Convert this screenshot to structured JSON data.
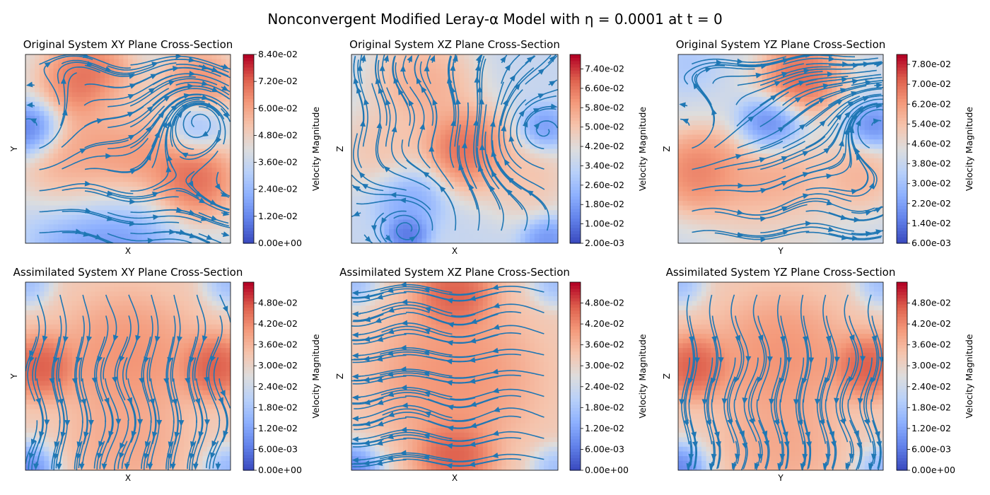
{
  "figure": {
    "title": "Nonconvergent Modified Leray-α Model with η = 0.0001 at t = 0"
  },
  "chart_data": [
    {
      "type": "heatmap",
      "title": "Original System XY Plane Cross-Section",
      "xlabel": "X",
      "ylabel": "Y",
      "colorbar": {
        "label": "Velocity Magnitude",
        "range": [
          0.0,
          0.084
        ],
        "ticks": [
          "0.00e+00",
          "1.20e-02",
          "2.40e-02",
          "3.60e-02",
          "4.80e-02",
          "6.00e-02",
          "7.20e-02",
          "8.40e-02"
        ]
      },
      "blobs": [
        {
          "x": 0.3,
          "y": 0.87,
          "r": 0.22,
          "v": 0.08
        },
        {
          "x": 0.85,
          "y": 0.85,
          "r": 0.18,
          "v": 0.072
        },
        {
          "x": 0.5,
          "y": 0.45,
          "r": 0.28,
          "v": 0.072
        },
        {
          "x": 0.8,
          "y": 0.33,
          "r": 0.22,
          "v": 0.082
        },
        {
          "x": 0.25,
          "y": 0.38,
          "r": 0.25,
          "v": 0.066
        },
        {
          "x": 0.02,
          "y": 0.6,
          "r": 0.14,
          "v": 0.0
        },
        {
          "x": 0.82,
          "y": 0.62,
          "r": 0.14,
          "v": 0.018
        },
        {
          "x": 0.4,
          "y": 0.02,
          "r": 0.35,
          "v": 0.008
        },
        {
          "x": 0.5,
          "y": 0.72,
          "r": 0.18,
          "v": 0.05
        }
      ],
      "base": 0.04,
      "vortices": [
        {
          "x": 0.02,
          "y": 0.6,
          "s": 1
        },
        {
          "x": 0.85,
          "y": 0.65,
          "s": -1
        }
      ],
      "flow": [
        0.02,
        -0.004
      ]
    },
    {
      "type": "heatmap",
      "title": "Original System XZ Plane Cross-Section",
      "xlabel": "X",
      "ylabel": "Z",
      "colorbar": {
        "label": "Velocity Magnitude",
        "range": [
          0.002,
          0.08
        ],
        "ticks": [
          "2.00e-03",
          "1.00e-02",
          "1.80e-02",
          "2.60e-02",
          "3.40e-02",
          "4.20e-02",
          "5.00e-02",
          "5.80e-02",
          "6.60e-02",
          "7.40e-02"
        ]
      },
      "blobs": [
        {
          "x": 0.55,
          "y": 0.5,
          "r": 0.22,
          "v": 0.078
        },
        {
          "x": 0.35,
          "y": 0.85,
          "r": 0.25,
          "v": 0.062
        },
        {
          "x": 0.15,
          "y": 0.5,
          "r": 0.22,
          "v": 0.055
        },
        {
          "x": 0.85,
          "y": 0.35,
          "r": 0.22,
          "v": 0.055
        },
        {
          "x": 0.28,
          "y": 0.25,
          "r": 0.17,
          "v": 0.015
        },
        {
          "x": 0.27,
          "y": 0.05,
          "r": 0.1,
          "v": 0.002
        },
        {
          "x": 0.93,
          "y": 0.6,
          "r": 0.12,
          "v": 0.01
        },
        {
          "x": 0.95,
          "y": 0.02,
          "r": 0.12,
          "v": 0.01
        }
      ],
      "base": 0.035,
      "vortices": [
        {
          "x": 0.27,
          "y": 0.07,
          "s": 1
        },
        {
          "x": 0.93,
          "y": 0.6,
          "s": -1
        }
      ],
      "flow": [
        0.0,
        0.015
      ]
    },
    {
      "type": "heatmap",
      "title": "Original System YZ Plane Cross-Section",
      "xlabel": "Y",
      "ylabel": "Z",
      "colorbar": {
        "label": "Velocity Magnitude",
        "range": [
          0.006,
          0.082
        ],
        "ticks": [
          "6.00e-03",
          "1.40e-02",
          "2.20e-02",
          "3.00e-02",
          "3.80e-02",
          "4.60e-02",
          "5.40e-02",
          "6.20e-02",
          "7.00e-02",
          "7.80e-02"
        ]
      },
      "blobs": [
        {
          "x": 0.6,
          "y": 0.88,
          "r": 0.2,
          "v": 0.08
        },
        {
          "x": 0.1,
          "y": 0.38,
          "r": 0.22,
          "v": 0.075
        },
        {
          "x": 0.45,
          "y": 0.3,
          "r": 0.28,
          "v": 0.066
        },
        {
          "x": 0.88,
          "y": 0.35,
          "r": 0.18,
          "v": 0.062
        },
        {
          "x": 0.45,
          "y": 0.62,
          "r": 0.15,
          "v": 0.006
        },
        {
          "x": 0.95,
          "y": 0.62,
          "r": 0.12,
          "v": 0.012
        },
        {
          "x": 0.05,
          "y": 0.95,
          "r": 0.14,
          "v": 0.03
        },
        {
          "x": 0.5,
          "y": 0.02,
          "r": 0.25,
          "v": 0.045
        }
      ],
      "base": 0.04,
      "vortices": [
        {
          "x": 0.97,
          "y": 0.62,
          "s": -1
        },
        {
          "x": 0.02,
          "y": 0.6,
          "s": 1
        }
      ],
      "flow": [
        0.02,
        0.0
      ]
    },
    {
      "type": "heatmap",
      "title": "Assimilated System XY Plane Cross-Section",
      "xlabel": "X",
      "ylabel": "Y",
      "colorbar": {
        "label": "Velocity Magnitude",
        "range": [
          0.0,
          0.054
        ],
        "ticks": [
          "0.00e+00",
          "6.00e-03",
          "1.20e-02",
          "1.80e-02",
          "2.40e-02",
          "3.00e-02",
          "3.60e-02",
          "4.20e-02",
          "4.80e-02"
        ]
      },
      "blobs": [
        {
          "x": 0.08,
          "y": 0.55,
          "r": 0.16,
          "v": 0.052
        },
        {
          "x": 0.92,
          "y": 0.55,
          "r": 0.16,
          "v": 0.052
        },
        {
          "x": 0.5,
          "y": 0.6,
          "r": 0.3,
          "v": 0.044
        },
        {
          "x": 0.5,
          "y": 0.15,
          "r": 0.25,
          "v": 0.04
        },
        {
          "x": 0.0,
          "y": 0.0,
          "r": 0.14,
          "v": 0.0
        },
        {
          "x": 1.0,
          "y": 0.0,
          "r": 0.12,
          "v": 0.01
        },
        {
          "x": 0.0,
          "y": 1.0,
          "r": 0.12,
          "v": 0.012
        },
        {
          "x": 1.0,
          "y": 1.0,
          "r": 0.12,
          "v": 0.012
        }
      ],
      "base": 0.032,
      "vortices": [],
      "flow": [
        0.0,
        -0.02
      ]
    },
    {
      "type": "heatmap",
      "title": "Assimilated System XZ Plane Cross-Section",
      "xlabel": "X",
      "ylabel": "Z",
      "colorbar": {
        "label": "Velocity Magnitude",
        "range": [
          0.0,
          0.054
        ],
        "ticks": [
          "0.00e+00",
          "6.00e-03",
          "1.20e-02",
          "1.80e-02",
          "2.40e-02",
          "3.00e-02",
          "3.60e-02",
          "4.20e-02",
          "4.80e-02"
        ]
      },
      "blobs": [
        {
          "x": 0.5,
          "y": 0.93,
          "r": 0.18,
          "v": 0.052
        },
        {
          "x": 0.5,
          "y": 0.08,
          "r": 0.18,
          "v": 0.052
        },
        {
          "x": 0.5,
          "y": 0.5,
          "r": 0.35,
          "v": 0.044
        },
        {
          "x": 0.0,
          "y": 0.0,
          "r": 0.14,
          "v": 0.0
        },
        {
          "x": 1.0,
          "y": 0.0,
          "r": 0.12,
          "v": 0.012
        },
        {
          "x": 0.0,
          "y": 1.0,
          "r": 0.12,
          "v": 0.012
        },
        {
          "x": 1.0,
          "y": 1.0,
          "r": 0.12,
          "v": 0.012
        }
      ],
      "base": 0.032,
      "vortices": [],
      "flow": [
        -0.02,
        0.0
      ]
    },
    {
      "type": "heatmap",
      "title": "Assimilated System YZ Plane Cross-Section",
      "xlabel": "Y",
      "ylabel": "Z",
      "colorbar": {
        "label": "Velocity Magnitude",
        "range": [
          0.0,
          0.054
        ],
        "ticks": [
          "0.00e+00",
          "6.00e-03",
          "1.20e-02",
          "1.80e-02",
          "2.40e-02",
          "3.00e-02",
          "3.60e-02",
          "4.20e-02",
          "4.80e-02"
        ]
      },
      "blobs": [
        {
          "x": 0.08,
          "y": 0.55,
          "r": 0.16,
          "v": 0.052
        },
        {
          "x": 0.92,
          "y": 0.55,
          "r": 0.16,
          "v": 0.052
        },
        {
          "x": 0.5,
          "y": 0.6,
          "r": 0.3,
          "v": 0.044
        },
        {
          "x": 0.5,
          "y": 0.15,
          "r": 0.25,
          "v": 0.04
        },
        {
          "x": 0.0,
          "y": 0.0,
          "r": 0.14,
          "v": 0.0
        },
        {
          "x": 1.0,
          "y": 0.0,
          "r": 0.12,
          "v": 0.01
        },
        {
          "x": 0.0,
          "y": 1.0,
          "r": 0.12,
          "v": 0.012
        },
        {
          "x": 1.0,
          "y": 1.0,
          "r": 0.12,
          "v": 0.012
        }
      ],
      "base": 0.032,
      "vortices": [],
      "flow": [
        0.0,
        -0.02
      ]
    }
  ]
}
